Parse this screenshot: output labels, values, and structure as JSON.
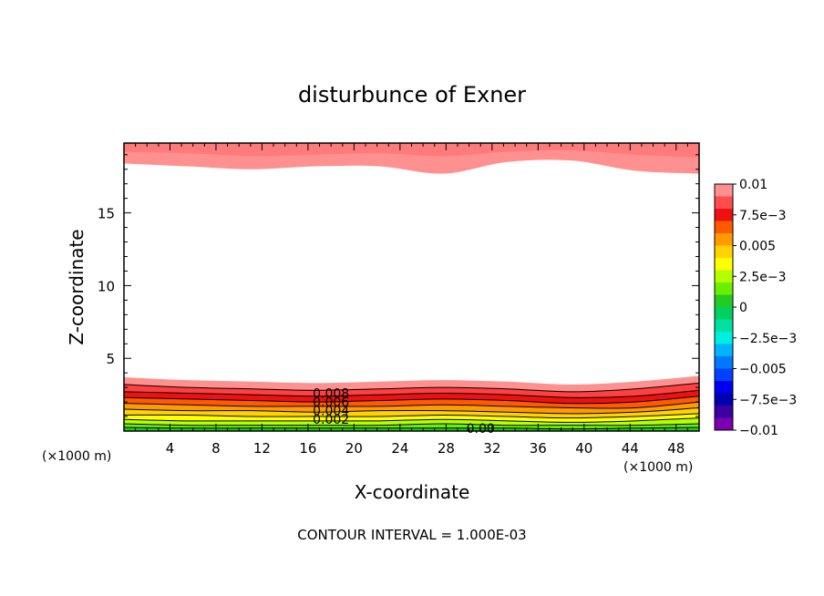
{
  "chart_data": {
    "type": "contour",
    "title": "disturbunce of Exner",
    "xlabel": "X-coordinate",
    "ylabel": "Z-coordinate",
    "x_unit_left": "(×1000 m)",
    "x_unit_right": "(×1000 m)",
    "xlim": [
      0,
      50
    ],
    "ylim": [
      0,
      19.8
    ],
    "x_ticks": [
      4,
      8,
      12,
      16,
      20,
      24,
      28,
      32,
      36,
      40,
      44,
      48
    ],
    "y_ticks": [
      5,
      10,
      15
    ],
    "footer": "CONTOUR INTERVAL = 1.000E-03",
    "contour_labels": [
      {
        "text": "0.008",
        "x": 18,
        "z": 2.6
      },
      {
        "text": "0.006",
        "x": 18,
        "z": 2.0
      },
      {
        "text": "0.004",
        "x": 18,
        "z": 1.4
      },
      {
        "text": "0.002",
        "x": 18,
        "z": 0.8
      },
      {
        "text": "0.00",
        "x": 31,
        "z": 0.2
      }
    ],
    "colorbar": {
      "tick_labels": [
        "0.01",
        "7.5e−3",
        "0.005",
        "2.5e−3",
        "0",
        "−2.5e−3",
        "−0.005",
        "−7.5e−3",
        "−0.01"
      ],
      "levels_top_to_bottom": [
        {
          "from": 0.009,
          "to": 0.01,
          "color": "#ff9090"
        },
        {
          "from": 0.008,
          "to": 0.009,
          "color": "#ff4d4d"
        },
        {
          "from": 0.007,
          "to": 0.008,
          "color": "#ee1111"
        },
        {
          "from": 0.006,
          "to": 0.007,
          "color": "#ff5a00"
        },
        {
          "from": 0.005,
          "to": 0.006,
          "color": "#ff9a00"
        },
        {
          "from": 0.004,
          "to": 0.005,
          "color": "#ffd200"
        },
        {
          "from": 0.003,
          "to": 0.004,
          "color": "#ffff00"
        },
        {
          "from": 0.002,
          "to": 0.003,
          "color": "#b4ff00"
        },
        {
          "from": 0.001,
          "to": 0.002,
          "color": "#6aef00"
        },
        {
          "from": 0.0,
          "to": 0.001,
          "color": "#22cc22"
        },
        {
          "from": -0.001,
          "to": 0.0,
          "color": "#00d060"
        },
        {
          "from": -0.002,
          "to": -0.001,
          "color": "#00e0a0"
        },
        {
          "from": -0.003,
          "to": -0.002,
          "color": "#00eedd"
        },
        {
          "from": -0.004,
          "to": -0.003,
          "color": "#00b4ff"
        },
        {
          "from": -0.005,
          "to": -0.004,
          "color": "#0078ff"
        },
        {
          "from": -0.006,
          "to": -0.005,
          "color": "#0040ff"
        },
        {
          "from": -0.007,
          "to": -0.006,
          "color": "#0000ee"
        },
        {
          "from": -0.008,
          "to": -0.007,
          "color": "#0000b0"
        },
        {
          "from": -0.009,
          "to": -0.008,
          "color": "#3a00a0"
        },
        {
          "from": -0.01,
          "to": -0.009,
          "color": "#7a00b0"
        }
      ]
    },
    "top_bands": [
      {
        "level": 0.009,
        "color": "#ff9090",
        "bottom_z": [
          18.4,
          18.2,
          18.0,
          18.2,
          18.2,
          17.7,
          18.5,
          18.6,
          17.9,
          17.7
        ]
      },
      {
        "level": 0.008,
        "color": "#ff7a7a",
        "bottom_z": [
          19.2,
          19.1,
          18.9,
          19.0,
          19.1,
          18.9,
          19.2,
          19.3,
          19.0,
          18.8
        ]
      }
    ],
    "bottom_bands": [
      {
        "level": 0.009,
        "color": "#ff9090",
        "top_z": [
          3.7,
          3.5,
          3.4,
          3.3,
          3.4,
          3.5,
          3.4,
          3.2,
          3.4,
          3.8
        ]
      },
      {
        "level": 0.008,
        "color": "#ff4040",
        "top_z": [
          3.2,
          3.0,
          2.9,
          2.8,
          2.9,
          3.0,
          2.9,
          2.7,
          2.9,
          3.3
        ]
      },
      {
        "level": 0.007,
        "color": "#ee1111",
        "top_z": [
          2.7,
          2.6,
          2.5,
          2.4,
          2.5,
          2.6,
          2.5,
          2.3,
          2.4,
          2.8
        ]
      },
      {
        "level": 0.006,
        "color": "#ff5a00",
        "top_z": [
          2.3,
          2.2,
          2.1,
          2.0,
          2.1,
          2.2,
          2.1,
          1.9,
          2.0,
          2.4
        ]
      },
      {
        "level": 0.005,
        "color": "#ff9a00",
        "top_z": [
          1.9,
          1.8,
          1.7,
          1.7,
          1.7,
          1.8,
          1.7,
          1.6,
          1.6,
          2.0
        ]
      },
      {
        "level": 0.004,
        "color": "#ffd200",
        "top_z": [
          1.5,
          1.4,
          1.4,
          1.3,
          1.4,
          1.4,
          1.3,
          1.2,
          1.3,
          1.6
        ]
      },
      {
        "level": 0.003,
        "color": "#ffff00",
        "top_z": [
          1.1,
          1.1,
          1.0,
          1.0,
          1.0,
          1.1,
          1.0,
          0.9,
          1.0,
          1.2
        ]
      },
      {
        "level": 0.002,
        "color": "#b4ff00",
        "top_z": [
          0.8,
          0.7,
          0.7,
          0.7,
          0.7,
          0.8,
          0.7,
          0.6,
          0.7,
          0.9
        ]
      },
      {
        "level": 0.001,
        "color": "#6aef00",
        "top_z": [
          0.5,
          0.4,
          0.4,
          0.4,
          0.4,
          0.5,
          0.4,
          0.4,
          0.4,
          0.5
        ]
      },
      {
        "level": 0.0,
        "color": "#22cc22",
        "top_z": [
          0.25,
          0.2,
          0.2,
          0.2,
          0.2,
          0.2,
          0.2,
          0.15,
          0.2,
          0.25
        ]
      }
    ]
  }
}
